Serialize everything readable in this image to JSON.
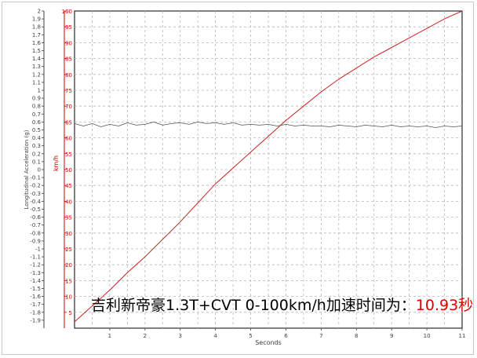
{
  "caption": {
    "text": "吉利新帝豪1.3T+CVT 0-100km/h加速时间为：",
    "value": "10.93秒"
  },
  "chart_data": {
    "type": "line",
    "title": "",
    "xlabel": "Seconds",
    "x_ticks": [
      "1",
      "2",
      "3",
      "4",
      "5",
      "6",
      "7",
      "8",
      "9",
      "10",
      "11"
    ],
    "xlim": [
      0,
      11
    ],
    "grid": true,
    "y_axes": [
      {
        "label": "Longitudinal Acceleration (g)",
        "range": [
          -2,
          2
        ],
        "ticks": [
          "2",
          "1.9",
          "1.8",
          "1.7",
          "1.6",
          "1.5",
          "1.4",
          "1.3",
          "1.2",
          "1.1",
          "1",
          "0.9",
          "0.8",
          "0.7",
          "0.6",
          "0.5",
          "0.4",
          "0.3",
          "0.2",
          "0.1",
          "0",
          "-0.1",
          "-0.2",
          "-0.3",
          "-0.4",
          "-0.5",
          "-0.6",
          "-0.7",
          "-0.8",
          "-0.9",
          "-1",
          "-1.1",
          "-1.2",
          "-1.3",
          "-1.4",
          "-1.5",
          "-1.6",
          "-1.7",
          "-1.8",
          "-1.9"
        ],
        "color": "#404040"
      },
      {
        "label": "km/h",
        "range": [
          0,
          100
        ],
        "ticks": [
          "100",
          "95",
          "90",
          "85",
          "80",
          "75",
          "70",
          "65",
          "60",
          "55",
          "50",
          "45",
          "40",
          "35",
          "30",
          "25",
          "20",
          "15",
          "10",
          "5"
        ],
        "color": "#cc0000"
      }
    ],
    "series": [
      {
        "axis": "km/h",
        "color": "#d02020",
        "x": [
          0,
          0.5,
          1,
          1.5,
          2,
          2.5,
          3,
          3.5,
          4,
          4.5,
          5,
          5.5,
          6,
          6.5,
          7,
          7.5,
          8,
          8.5,
          9,
          9.5,
          10,
          10.5,
          11
        ],
        "y": [
          2,
          7,
          12,
          17.5,
          22.5,
          28,
          33.5,
          39.5,
          45.5,
          50.5,
          55.5,
          60.5,
          65.5,
          70,
          74.5,
          78.5,
          82,
          85.5,
          88.5,
          91.5,
          94.5,
          97.5,
          100
        ]
      },
      {
        "axis": "g",
        "color": "#505050",
        "x": [
          0,
          0.25,
          0.5,
          0.75,
          1,
          1.25,
          1.5,
          1.75,
          2,
          2.25,
          2.5,
          2.75,
          3,
          3.25,
          3.5,
          3.75,
          4,
          4.25,
          4.5,
          4.75,
          5,
          5.25,
          5.5,
          5.75,
          6,
          6.25,
          6.5,
          6.75,
          7,
          7.25,
          7.5,
          7.75,
          8,
          8.25,
          8.5,
          8.75,
          9,
          9.25,
          9.5,
          9.75,
          10,
          10.25,
          10.5,
          10.75,
          11
        ],
        "y": [
          0.58,
          0.55,
          0.58,
          0.54,
          0.57,
          0.55,
          0.59,
          0.56,
          0.57,
          0.6,
          0.56,
          0.58,
          0.59,
          0.57,
          0.6,
          0.58,
          0.59,
          0.57,
          0.59,
          0.56,
          0.57,
          0.56,
          0.57,
          0.55,
          0.57,
          0.55,
          0.56,
          0.55,
          0.55,
          0.54,
          0.56,
          0.55,
          0.54,
          0.56,
          0.55,
          0.54,
          0.56,
          0.54,
          0.55,
          0.54,
          0.55,
          0.53,
          0.55,
          0.54,
          0.55
        ]
      }
    ]
  }
}
